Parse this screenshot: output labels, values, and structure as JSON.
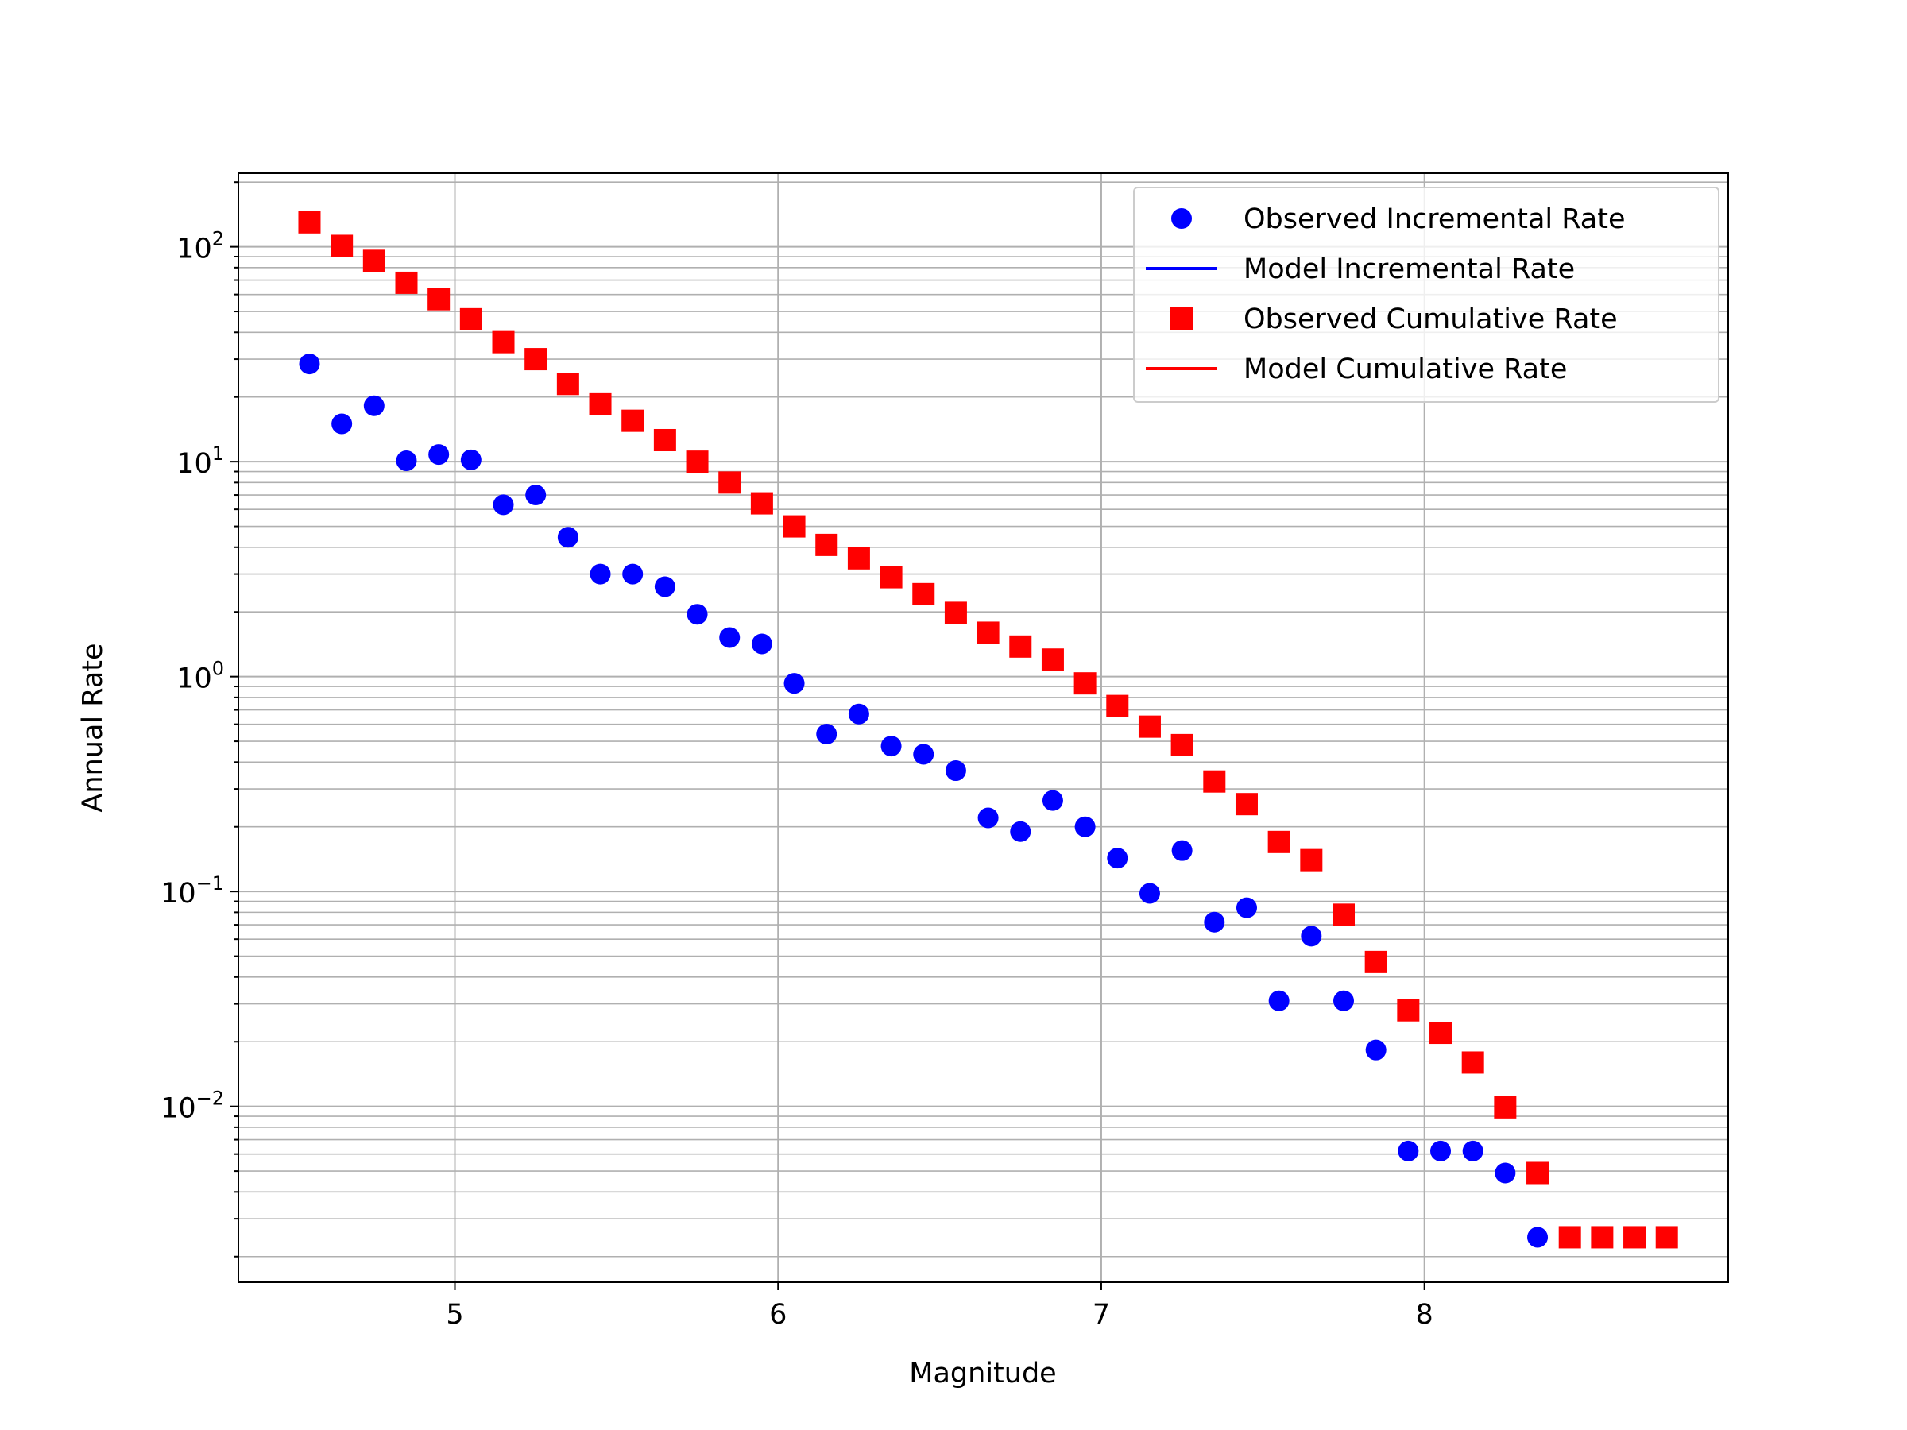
{
  "chart_data": {
    "type": "scatter",
    "title": "",
    "xlabel": "Magnitude",
    "ylabel": "Annual Rate",
    "xlim": [
      4.33,
      8.94
    ],
    "ylim": [
      0.00152,
      220
    ],
    "yscale": "log",
    "grid": "major and minor",
    "legend_position": "top-right",
    "x_ticks": [
      5,
      6,
      7,
      8
    ],
    "x_tick_labels": [
      "5",
      "6",
      "7",
      "8"
    ],
    "y_ticks": [
      0.01,
      0.1,
      1,
      10,
      100
    ],
    "y_tick_labels": [
      {
        "base": "10",
        "exp": "−2"
      },
      {
        "base": "10",
        "exp": "−1"
      },
      {
        "base": "10",
        "exp": "0"
      },
      {
        "base": "10",
        "exp": "1"
      },
      {
        "base": "10",
        "exp": "2"
      }
    ],
    "legend": [
      {
        "label": "Observed Incremental Rate",
        "kind": "marker-circle",
        "color": "#0000ff"
      },
      {
        "label": "Model Incremental Rate",
        "kind": "line",
        "color": "#0000ff"
      },
      {
        "label": "Observed Cumulative Rate",
        "kind": "marker-square",
        "color": "#ff0000"
      },
      {
        "label": "Model Cumulative Rate",
        "kind": "line",
        "color": "#ff0000"
      }
    ],
    "series": [
      {
        "name": "Observed Incremental Rate",
        "marker": "circle",
        "color": "#0000ff",
        "points": [
          [
            4.55,
            28.5
          ],
          [
            4.65,
            15.0
          ],
          [
            4.75,
            18.2
          ],
          [
            4.85,
            10.1
          ],
          [
            4.95,
            10.8
          ],
          [
            5.05,
            10.2
          ],
          [
            5.15,
            6.3
          ],
          [
            5.25,
            7.0
          ],
          [
            5.35,
            4.45
          ],
          [
            5.45,
            3.0
          ],
          [
            5.55,
            3.0
          ],
          [
            5.65,
            2.62
          ],
          [
            5.75,
            1.95
          ],
          [
            5.85,
            1.52
          ],
          [
            5.95,
            1.42
          ],
          [
            6.05,
            0.93
          ],
          [
            6.15,
            0.54
          ],
          [
            6.25,
            0.67
          ],
          [
            6.35,
            0.475
          ],
          [
            6.45,
            0.435
          ],
          [
            6.55,
            0.365
          ],
          [
            6.65,
            0.22
          ],
          [
            6.75,
            0.19
          ],
          [
            6.85,
            0.265
          ],
          [
            6.95,
            0.2
          ],
          [
            7.05,
            0.143
          ],
          [
            7.15,
            0.098
          ],
          [
            7.25,
            0.155
          ],
          [
            7.35,
            0.072
          ],
          [
            7.45,
            0.084
          ],
          [
            7.55,
            0.031
          ],
          [
            7.65,
            0.062
          ],
          [
            7.75,
            0.031
          ],
          [
            7.85,
            0.0183
          ],
          [
            7.95,
            0.0062
          ],
          [
            8.05,
            0.0062
          ],
          [
            8.15,
            0.0062
          ],
          [
            8.25,
            0.0049
          ],
          [
            8.35,
            0.00246
          ]
        ]
      },
      {
        "name": "Observed Cumulative Rate",
        "marker": "square",
        "color": "#ff0000",
        "points": [
          [
            4.55,
            130
          ],
          [
            4.65,
            101
          ],
          [
            4.75,
            86
          ],
          [
            4.85,
            68
          ],
          [
            4.95,
            57
          ],
          [
            5.05,
            46
          ],
          [
            5.15,
            36
          ],
          [
            5.25,
            30
          ],
          [
            5.35,
            23
          ],
          [
            5.45,
            18.5
          ],
          [
            5.55,
            15.5
          ],
          [
            5.65,
            12.6
          ],
          [
            5.75,
            10.0
          ],
          [
            5.85,
            8.0
          ],
          [
            5.95,
            6.4
          ],
          [
            6.05,
            5.0
          ],
          [
            6.15,
            4.1
          ],
          [
            6.25,
            3.55
          ],
          [
            6.35,
            2.9
          ],
          [
            6.45,
            2.42
          ],
          [
            6.55,
            1.98
          ],
          [
            6.65,
            1.6
          ],
          [
            6.75,
            1.38
          ],
          [
            6.85,
            1.2
          ],
          [
            6.95,
            0.93
          ],
          [
            7.05,
            0.73
          ],
          [
            7.15,
            0.585
          ],
          [
            7.25,
            0.48
          ],
          [
            7.35,
            0.325
          ],
          [
            7.45,
            0.255
          ],
          [
            7.55,
            0.17
          ],
          [
            7.65,
            0.14
          ],
          [
            7.75,
            0.078
          ],
          [
            7.85,
            0.047
          ],
          [
            7.95,
            0.028
          ],
          [
            8.05,
            0.022
          ],
          [
            8.15,
            0.016
          ],
          [
            8.25,
            0.0099
          ],
          [
            8.35,
            0.0049
          ],
          [
            8.45,
            0.00246
          ],
          [
            8.55,
            0.00246
          ],
          [
            8.65,
            0.00246
          ],
          [
            8.75,
            0.00246
          ]
        ]
      }
    ]
  }
}
